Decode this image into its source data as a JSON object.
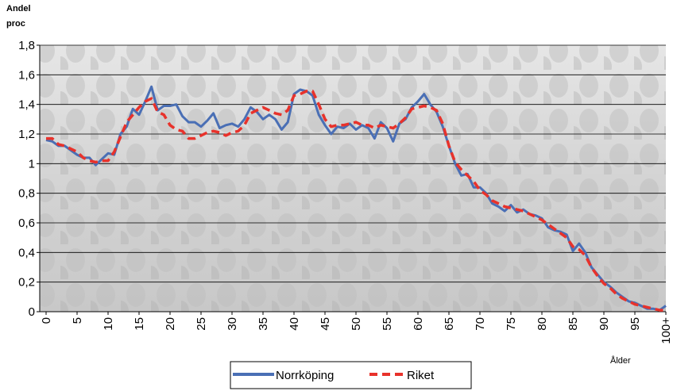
{
  "chart_data": {
    "type": "line",
    "ylabel_lines": [
      "Andel",
      "proc"
    ],
    "xlabel": "Ålder",
    "categories": [
      "0",
      null,
      null,
      null,
      null,
      "5",
      null,
      null,
      null,
      null,
      "10",
      null,
      null,
      null,
      null,
      "15",
      null,
      null,
      null,
      null,
      "20",
      null,
      null,
      null,
      null,
      "25",
      null,
      null,
      null,
      null,
      "30",
      null,
      null,
      null,
      null,
      "35",
      null,
      null,
      null,
      null,
      "40",
      null,
      null,
      null,
      null,
      "45",
      null,
      null,
      null,
      null,
      "50",
      null,
      null,
      null,
      null,
      "55",
      null,
      null,
      null,
      null,
      "60",
      null,
      null,
      null,
      null,
      "65",
      null,
      null,
      null,
      null,
      "70",
      null,
      null,
      null,
      null,
      "75",
      null,
      null,
      null,
      null,
      "80",
      null,
      null,
      null,
      null,
      "85",
      null,
      null,
      null,
      null,
      "90",
      null,
      null,
      null,
      null,
      "95",
      null,
      null,
      null,
      null,
      "100+"
    ],
    "series": [
      {
        "name": "Norrköping",
        "color": "#4a6fb5",
        "dashed": false,
        "values": [
          1.16,
          1.15,
          1.12,
          1.12,
          1.09,
          1.06,
          1.04,
          1.04,
          0.99,
          1.03,
          1.07,
          1.06,
          1.2,
          1.25,
          1.37,
          1.33,
          1.42,
          1.52,
          1.36,
          1.39,
          1.39,
          1.4,
          1.32,
          1.28,
          1.28,
          1.25,
          1.29,
          1.34,
          1.24,
          1.26,
          1.27,
          1.25,
          1.3,
          1.38,
          1.35,
          1.3,
          1.33,
          1.3,
          1.23,
          1.28,
          1.47,
          1.5,
          1.49,
          1.46,
          1.33,
          1.26,
          1.2,
          1.25,
          1.24,
          1.27,
          1.23,
          1.26,
          1.24,
          1.17,
          1.28,
          1.24,
          1.15,
          1.27,
          1.3,
          1.38,
          1.42,
          1.47,
          1.4,
          1.35,
          1.25,
          1.12,
          1.0,
          0.92,
          0.93,
          0.84,
          0.84,
          0.8,
          0.73,
          0.71,
          0.68,
          0.72,
          0.67,
          0.69,
          0.66,
          0.65,
          0.63,
          0.57,
          0.55,
          0.54,
          0.52,
          0.41,
          0.46,
          0.4,
          0.3,
          0.25,
          0.2,
          0.17,
          0.13,
          0.1,
          0.07,
          0.06,
          0.04,
          0.02,
          0.02,
          0.01,
          0.04
        ]
      },
      {
        "name": "Riket",
        "color": "#e8322b",
        "dashed": true,
        "values": [
          1.17,
          1.17,
          1.13,
          1.12,
          1.1,
          1.08,
          1.04,
          1.02,
          1.01,
          1.02,
          1.02,
          1.08,
          1.18,
          1.28,
          1.33,
          1.38,
          1.42,
          1.44,
          1.35,
          1.33,
          1.26,
          1.23,
          1.22,
          1.17,
          1.17,
          1.19,
          1.21,
          1.22,
          1.21,
          1.19,
          1.21,
          1.22,
          1.26,
          1.34,
          1.36,
          1.38,
          1.36,
          1.34,
          1.33,
          1.36,
          1.46,
          1.47,
          1.49,
          1.49,
          1.4,
          1.3,
          1.25,
          1.26,
          1.26,
          1.27,
          1.28,
          1.26,
          1.26,
          1.24,
          1.26,
          1.25,
          1.24,
          1.27,
          1.31,
          1.37,
          1.38,
          1.39,
          1.38,
          1.36,
          1.27,
          1.12,
          1.01,
          0.96,
          0.92,
          0.88,
          0.82,
          0.79,
          0.75,
          0.73,
          0.71,
          0.7,
          0.69,
          0.68,
          0.66,
          0.64,
          0.62,
          0.59,
          0.56,
          0.53,
          0.5,
          0.44,
          0.42,
          0.38,
          0.3,
          0.24,
          0.19,
          0.16,
          0.12,
          0.09,
          0.07,
          0.05,
          0.04,
          0.03,
          0.02,
          0.01,
          0.01
        ]
      }
    ],
    "ylim": [
      0,
      1.8
    ],
    "yticks": [
      0,
      {
        "value": 0.2,
        "label": "0,2"
      },
      {
        "value": 0.4,
        "label": "0,4"
      },
      {
        "value": 0.6,
        "label": "0,6"
      },
      {
        "value": 0.8,
        "label": "0,8"
      },
      1,
      {
        "value": 1.2,
        "label": "1,2"
      },
      {
        "value": 1.4,
        "label": "1,4"
      },
      {
        "value": 1.6,
        "label": "1,6"
      },
      {
        "value": 1.8,
        "label": "1,8"
      }
    ],
    "grid": true
  }
}
